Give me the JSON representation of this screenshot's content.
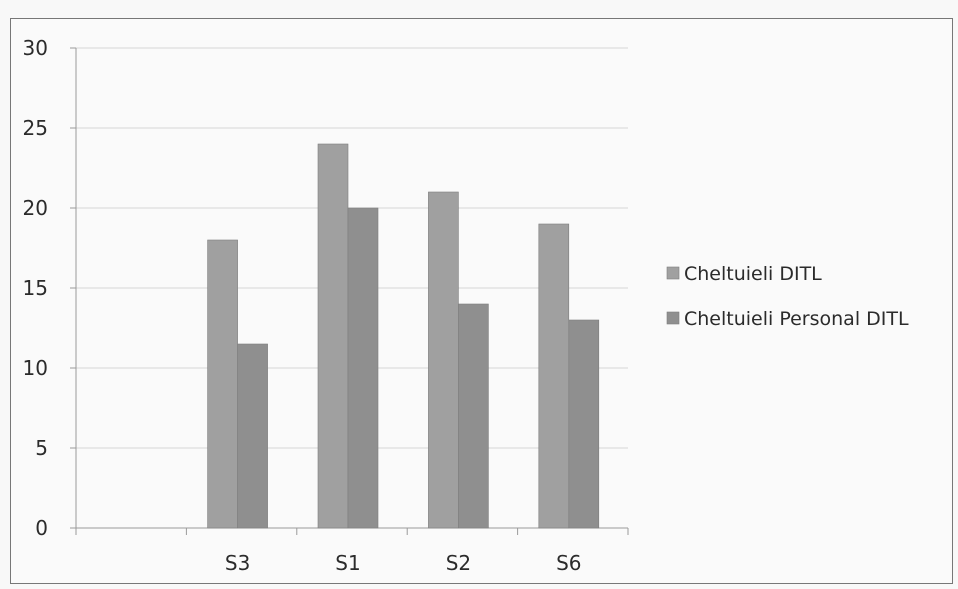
{
  "chart_data": {
    "type": "bar",
    "categories": [
      "S3",
      "S1",
      "S2",
      "S6"
    ],
    "series": [
      {
        "name": "Cheltuieli DITL",
        "values": [
          18,
          24,
          21,
          19
        ],
        "color": "#a0a0a0"
      },
      {
        "name": "Cheltuieli Personal DITL",
        "values": [
          11.5,
          20,
          14,
          13
        ],
        "color": "#8f8f8f"
      }
    ],
    "y_ticks": [
      "0",
      "5",
      "10",
      "15",
      "20",
      "25",
      "30"
    ],
    "ylim": [
      0,
      30
    ],
    "grid": true,
    "legend": "right"
  }
}
